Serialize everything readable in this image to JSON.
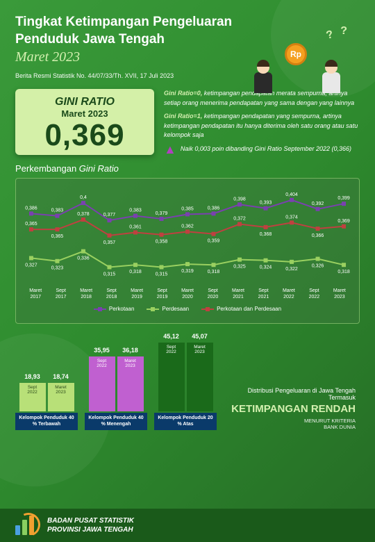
{
  "header": {
    "title_line1": "Tingkat Ketimpangan Pengeluaran",
    "title_line2": "Penduduk Jawa Tengah",
    "period": "Maret 2023",
    "reference": "Berita Resmi Statistik No. 44/07/33/Th. XVII, 17 Juli 2023",
    "coin_text": "Rp"
  },
  "gini": {
    "label": "GINI RATIO",
    "period": "Maret 2023",
    "value": "0,369",
    "desc0_label": "Gini Ratio=0,",
    "desc0": "ketimpangan pendapatan merata sempurna, artinya setiap orang menerima pendapatan yang sama dengan yang lainnya",
    "desc1_label": "Gini Ratio=1,",
    "desc1": "ketimpangan pendapatan yang sempurna, artinya ketimpangan pendapatan itu hanya diterima oleh satu orang atau satu kelompok saja",
    "change": "Naik 0,003 poin dibanding Gini Ratio September 2022 (0,366)"
  },
  "line_chart": {
    "title_plain": "Perkembangan ",
    "title_italic": "Gini Ratio",
    "x_labels": [
      "Maret 2017",
      "Sept 2017",
      "Maret 2018",
      "Sept 2018",
      "Maret 2019",
      "Sept 2019",
      "Maret 2020",
      "Sept 2020",
      "Maret 2021",
      "Sept 2021",
      "Maret 2022",
      "Sept 2022",
      "Maret 2023"
    ],
    "ylim": [
      0.3,
      0.41
    ],
    "series": [
      {
        "name": "Perkotaan",
        "color": "#7a40b0",
        "values": [
          0.386,
          0.383,
          0.4,
          0.377,
          0.383,
          0.379,
          0.385,
          0.386,
          0.398,
          0.393,
          0.404,
          0.392,
          0.399
        ]
      },
      {
        "name": "Perdesaan",
        "color": "#9ad060",
        "values": [
          0.327,
          0.323,
          0.336,
          0.315,
          0.318,
          0.315,
          0.319,
          0.318,
          0.325,
          0.324,
          0.322,
          0.326,
          0.318
        ]
      },
      {
        "name": "Perkotaan dan Perdesaan",
        "color": "#c04040",
        "values": [
          0.365,
          0.365,
          0.378,
          0.357,
          0.361,
          0.358,
          0.362,
          0.359,
          0.372,
          0.368,
          0.374,
          0.366,
          0.369
        ]
      }
    ]
  },
  "bars": {
    "groups": [
      {
        "label": "Kelompok Penduduk 40 % Terbawah",
        "color": "#b8e078",
        "text": "#2a4a1a",
        "bars": [
          {
            "period": "Sept 2022",
            "value": 18.93
          },
          {
            "period": "Maret 2023",
            "value": 18.74
          }
        ]
      },
      {
        "label": "Kelompok Penduduk 40 % Menengah",
        "color": "#c060d0",
        "text": "#fff",
        "bars": [
          {
            "period": "Sept 2022",
            "value": 35.95
          },
          {
            "period": "Maret 2023",
            "value": 36.18
          }
        ]
      },
      {
        "label": "Kelompok Penduduk 20 % Atas",
        "color": "#1a6a1a",
        "text": "#fff",
        "bars": [
          {
            "period": "Sept 2022",
            "value": 45.12
          },
          {
            "period": "Maret 2023",
            "value": 45.07
          }
        ]
      }
    ],
    "max": 50,
    "dist_line1": "Distribusi Pengeluaran di Jawa Tengah Termasuk",
    "dist_big": "KETIMPANGAN RENDAH",
    "dist_small1": "MENURUT KRITERIA",
    "dist_small2": "BANK DUNIA"
  },
  "footer": {
    "org1": "BADAN PUSAT STATISTIK",
    "org2": "PROVINSI JAWA TENGAH",
    "logo_colors": [
      "#4aa0e0",
      "#8ad060",
      "#f0a030"
    ]
  }
}
